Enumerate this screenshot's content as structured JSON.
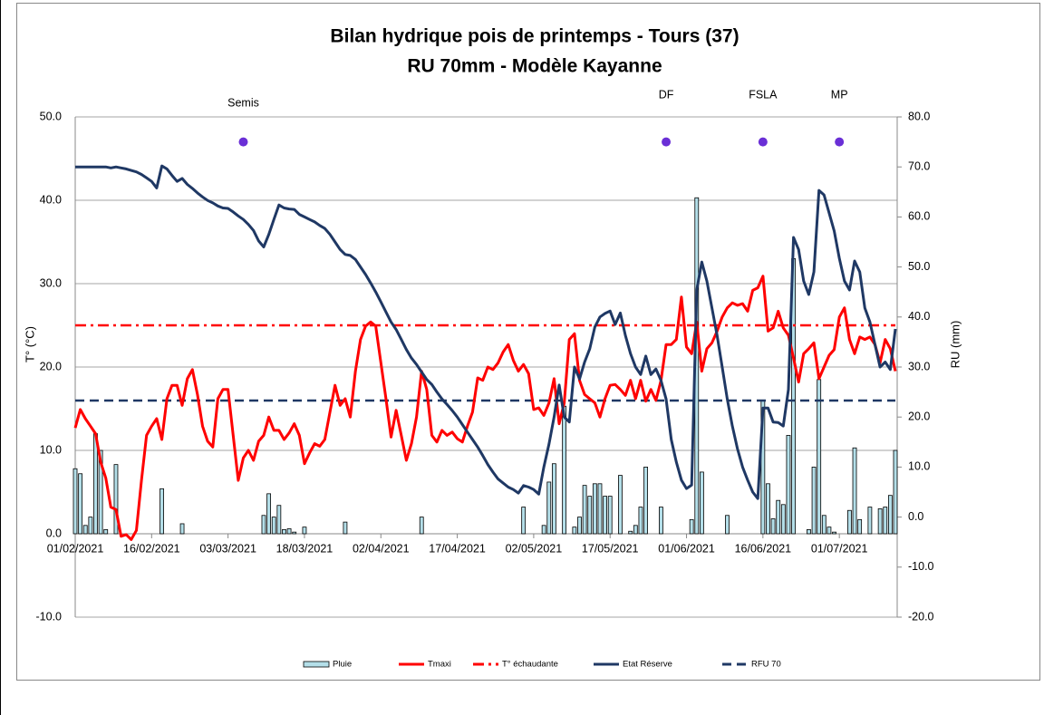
{
  "chart_data": {
    "type": "combo",
    "title": "Bilan hydrique pois de printemps - Tours (37)",
    "subtitle": "RU 70mm - Modèle Kayanne",
    "y_label": "T° (°C)",
    "y2_label": "RU (mm)",
    "grid": true,
    "legend": "bottom",
    "x": [
      "01/02/2021",
      "02/02/2021",
      "03/02/2021",
      "04/02/2021",
      "05/02/2021",
      "06/02/2021",
      "07/02/2021",
      "08/02/2021",
      "09/02/2021",
      "10/02/2021",
      "11/02/2021",
      "12/02/2021",
      "13/02/2021",
      "14/02/2021",
      "15/02/2021",
      "16/02/2021",
      "17/02/2021",
      "18/02/2021",
      "19/02/2021",
      "20/02/2021",
      "21/02/2021",
      "22/02/2021",
      "23/02/2021",
      "24/02/2021",
      "25/02/2021",
      "26/02/2021",
      "27/02/2021",
      "28/02/2021",
      "01/03/2021",
      "02/03/2021",
      "03/03/2021",
      "04/03/2021",
      "05/03/2021",
      "06/03/2021",
      "07/03/2021",
      "08/03/2021",
      "09/03/2021",
      "10/03/2021",
      "11/03/2021",
      "12/03/2021",
      "13/03/2021",
      "14/03/2021",
      "15/03/2021",
      "16/03/2021",
      "17/03/2021",
      "18/03/2021",
      "19/03/2021",
      "20/03/2021",
      "21/03/2021",
      "22/03/2021",
      "23/03/2021",
      "24/03/2021",
      "25/03/2021",
      "26/03/2021",
      "27/03/2021",
      "28/03/2021",
      "29/03/2021",
      "30/03/2021",
      "31/03/2021",
      "01/04/2021",
      "02/04/2021",
      "03/04/2021",
      "04/04/2021",
      "05/04/2021",
      "06/04/2021",
      "07/04/2021",
      "08/04/2021",
      "09/04/2021",
      "10/04/2021",
      "11/04/2021",
      "12/04/2021",
      "13/04/2021",
      "14/04/2021",
      "15/04/2021",
      "16/04/2021",
      "17/04/2021",
      "18/04/2021",
      "19/04/2021",
      "20/04/2021",
      "21/04/2021",
      "22/04/2021",
      "23/04/2021",
      "24/04/2021",
      "25/04/2021",
      "26/04/2021",
      "27/04/2021",
      "28/04/2021",
      "29/04/2021",
      "30/04/2021",
      "01/05/2021",
      "02/05/2021",
      "03/05/2021",
      "04/05/2021",
      "05/05/2021",
      "06/05/2021",
      "07/05/2021",
      "08/05/2021",
      "09/05/2021",
      "10/05/2021",
      "11/05/2021",
      "12/05/2021",
      "13/05/2021",
      "14/05/2021",
      "15/05/2021",
      "16/05/2021",
      "17/05/2021",
      "18/05/2021",
      "19/05/2021",
      "20/05/2021",
      "21/05/2021",
      "22/05/2021",
      "23/05/2021",
      "24/05/2021",
      "25/05/2021",
      "26/05/2021",
      "27/05/2021",
      "28/05/2021",
      "29/05/2021",
      "30/05/2021",
      "31/05/2021",
      "01/06/2021",
      "02/06/2021",
      "03/06/2021",
      "04/06/2021",
      "05/06/2021",
      "06/06/2021",
      "07/06/2021",
      "08/06/2021",
      "09/06/2021",
      "10/06/2021",
      "11/06/2021",
      "12/06/2021",
      "13/06/2021",
      "14/06/2021",
      "15/06/2021",
      "16/06/2021",
      "17/06/2021",
      "18/06/2021",
      "19/06/2021",
      "20/06/2021",
      "21/06/2021",
      "22/06/2021",
      "23/06/2021",
      "24/06/2021",
      "25/06/2021",
      "26/06/2021",
      "27/06/2021",
      "28/06/2021",
      "29/06/2021",
      "30/06/2021",
      "01/07/2021",
      "02/07/2021",
      "03/07/2021",
      "04/07/2021",
      "05/07/2021",
      "06/07/2021",
      "07/07/2021",
      "08/07/2021",
      "09/07/2021",
      "10/07/2021",
      "11/07/2021",
      "12/07/2021"
    ],
    "xticks": [
      "01/02/2021",
      "16/02/2021",
      "03/03/2021",
      "18/03/2021",
      "02/04/2021",
      "17/04/2021",
      "02/05/2021",
      "17/05/2021",
      "01/06/2021",
      "16/06/2021",
      "01/07/2021"
    ],
    "ylim": [
      -10,
      50
    ],
    "yticks": [
      {
        "value": -10,
        "label": "-10.0"
      },
      {
        "value": 0,
        "label": "0.0"
      },
      {
        "value": 10,
        "label": "10.0"
      },
      {
        "value": 20,
        "label": "20.0"
      },
      {
        "value": 30,
        "label": "30.0"
      },
      {
        "value": 40,
        "label": "40.0"
      },
      {
        "value": 50,
        "label": "50.0"
      }
    ],
    "y2lim": [
      -20,
      80
    ],
    "y2ticks": [
      {
        "value": -20,
        "label": "-20.0"
      },
      {
        "value": -10,
        "label": "-10.0"
      },
      {
        "value": 0,
        "label": "0.0"
      },
      {
        "value": 10,
        "label": "10.0"
      },
      {
        "value": 20,
        "label": "20.0"
      },
      {
        "value": 30,
        "label": "30.0"
      },
      {
        "value": 40,
        "label": "40.0"
      },
      {
        "value": 50,
        "label": "50.0"
      },
      {
        "value": 60,
        "label": "60.0"
      },
      {
        "value": 70,
        "label": "70.0"
      },
      {
        "value": 80,
        "label": "80.0"
      }
    ],
    "series": [
      {
        "name": "Pluie",
        "type": "bar",
        "axis": "y",
        "color": "#b4dfe9",
        "values": [
          7.8,
          7.2,
          1,
          2,
          12,
          10,
          0.5,
          0,
          8.3,
          0,
          0,
          0,
          0,
          0,
          0,
          0,
          0,
          5.4,
          0,
          0,
          0,
          1.2,
          0,
          0,
          0,
          0,
          0,
          0,
          0,
          0,
          0,
          0,
          0,
          0,
          0,
          0,
          0,
          2.2,
          4.8,
          2,
          3.4,
          0.5,
          0.6,
          0.2,
          0,
          0.8,
          0,
          0,
          0,
          0,
          0,
          0,
          0,
          1.4,
          0,
          0,
          0,
          0,
          0,
          0,
          0,
          0,
          0,
          0,
          0,
          0,
          0,
          0,
          2,
          0,
          0,
          0,
          0,
          0,
          0,
          0,
          0,
          0,
          0,
          0,
          0,
          0,
          0,
          0,
          0,
          0,
          0,
          0,
          3.2,
          0,
          0,
          0,
          1,
          6.2,
          8.4,
          0,
          15.3,
          0,
          0.8,
          2,
          5.8,
          4.5,
          6,
          6,
          4.5,
          4.5,
          0,
          7,
          0,
          0.3,
          1,
          3.2,
          8,
          0,
          0,
          3.2,
          0,
          0,
          0,
          0,
          0,
          1.7,
          40.3,
          7.4,
          0,
          0,
          0,
          0,
          2.2,
          0,
          0,
          0,
          0,
          0,
          0,
          16,
          6,
          1.8,
          4,
          3.5,
          11.8,
          33,
          0,
          0,
          0.5,
          8,
          18.5,
          2.2,
          0.8,
          0.2,
          0,
          0,
          2.8,
          10.3,
          1.7,
          0,
          3.2,
          0,
          3,
          3.2,
          4.6,
          10
        ]
      },
      {
        "name": "Tmaxi",
        "type": "line",
        "axis": "y",
        "color": "#ff0000",
        "values": [
          12.7,
          14.9,
          13.8,
          12.9,
          12,
          8.6,
          6.7,
          3.2,
          2.9,
          -0.3,
          -0.1,
          -0.7,
          0.4,
          6.4,
          11.8,
          12.9,
          13.8,
          11.3,
          16.2,
          17.8,
          17.8,
          15.4,
          18.6,
          19.7,
          16.7,
          12.9,
          11.1,
          10.4,
          16.2,
          17.3,
          17.3,
          11.8,
          6.4,
          9.1,
          10,
          8.8,
          11.1,
          11.8,
          14,
          12.4,
          12.4,
          11.3,
          12.1,
          13.2,
          11.8,
          8.4,
          9.7,
          10.8,
          10.5,
          11.3,
          14.6,
          17.8,
          15.4,
          16.2,
          14,
          19.5,
          23.3,
          24.9,
          25.4,
          24.9,
          20.5,
          16.2,
          11.6,
          14.8,
          11.8,
          8.8,
          10.8,
          14,
          19.5,
          17.3,
          11.8,
          11,
          12.4,
          11.8,
          12.2,
          11.4,
          11,
          12.9,
          14.6,
          18.7,
          18.4,
          20,
          19.7,
          20.5,
          21.8,
          22.7,
          20.8,
          19.5,
          20.3,
          19.2,
          14.9,
          15.1,
          14.2,
          15.7,
          18.6,
          13.2,
          15.7,
          23.3,
          24,
          18.4,
          16.7,
          16.2,
          15.7,
          14,
          16.2,
          17.8,
          17.9,
          17.3,
          16.6,
          18.4,
          16.2,
          18.4,
          15.9,
          17.3,
          16,
          18.4,
          22.7,
          22.7,
          23.3,
          28.4,
          22.4,
          21.6,
          25.4,
          19.5,
          22.2,
          22.9,
          24.3,
          26,
          27.1,
          27.7,
          27.4,
          27.6,
          26.7,
          29.2,
          29.5,
          30.9,
          24.3,
          24.7,
          26.7,
          24.7,
          23.8,
          21.1,
          18.2,
          21.6,
          22.2,
          22.9,
          18.6,
          20,
          21.4,
          22.1,
          26,
          27.1,
          23.3,
          21.6,
          23.6,
          23.3,
          23.6,
          22.7,
          20.5,
          23.3,
          22.2,
          19.5
        ]
      },
      {
        "name": "T° échaudante",
        "type": "hline",
        "axis": "y",
        "color": "#ff0000",
        "dash": "dashdot",
        "value": 25
      },
      {
        "name": "Etat Réserve",
        "type": "line",
        "axis": "y2",
        "color": "#1f3864",
        "values": [
          70,
          70,
          70,
          70,
          70,
          70,
          70,
          69.8,
          70,
          69.8,
          69.6,
          69.3,
          69,
          68.5,
          67.8,
          67.1,
          65.8,
          70.2,
          69.6,
          68.3,
          67.1,
          67.7,
          66.5,
          65.7,
          64.8,
          64,
          63.3,
          62.8,
          62.2,
          61.8,
          61.7,
          61,
          60.2,
          59.5,
          58.5,
          57.3,
          55.2,
          54,
          56.5,
          59.5,
          62.4,
          61.8,
          61.6,
          61.5,
          60.5,
          60,
          59.5,
          59,
          58.3,
          57.7,
          56.5,
          55,
          53.5,
          52.5,
          52.3,
          51.5,
          50,
          48.5,
          46.8,
          45,
          43,
          41,
          39,
          37.5,
          35.5,
          33.5,
          31.8,
          30.5,
          29,
          27.5,
          26.5,
          25,
          23.6,
          22.5,
          21.3,
          20,
          18.5,
          17,
          15.5,
          14,
          12.3,
          10.5,
          9,
          7.6,
          6.8,
          6,
          5.5,
          4.8,
          6.3,
          6,
          5.5,
          4.6,
          10,
          14.6,
          20,
          26.4,
          20,
          19,
          30,
          27.6,
          31,
          33.6,
          38,
          40,
          40.7,
          41.2,
          38.5,
          40.8,
          36.3,
          32.7,
          30,
          28.5,
          32.2,
          28.5,
          29.6,
          27.3,
          23.6,
          15.5,
          11,
          7.4,
          5.7,
          6.4,
          45.4,
          51,
          47.2,
          41.8,
          36.3,
          30,
          23.6,
          18.2,
          13.7,
          10,
          7.4,
          5,
          3.7,
          21.8,
          21.8,
          19,
          18.9,
          18.2,
          25.5,
          55.9,
          53.5,
          47.2,
          44.5,
          49,
          65.3,
          64.4,
          60.8,
          57.2,
          51.7,
          47.2,
          45.4,
          51.2,
          49,
          41.8,
          39,
          34.5,
          30,
          31,
          29.5,
          37.6
        ]
      },
      {
        "name": "RFU 70",
        "type": "hline",
        "axis": "y2",
        "color": "#1f3864",
        "dash": "dashed",
        "value": 23.3
      }
    ],
    "marker_color": "#6a2fd6",
    "markers": [
      {
        "label": "Semis",
        "x": "06/03/2021",
        "y": 47
      },
      {
        "label": "DF",
        "x": "28/05/2021",
        "y": 47
      },
      {
        "label": "FSLA",
        "x": "16/06/2021",
        "y": 47
      },
      {
        "label": "MP",
        "x": "01/07/2021",
        "y": 47
      }
    ]
  }
}
